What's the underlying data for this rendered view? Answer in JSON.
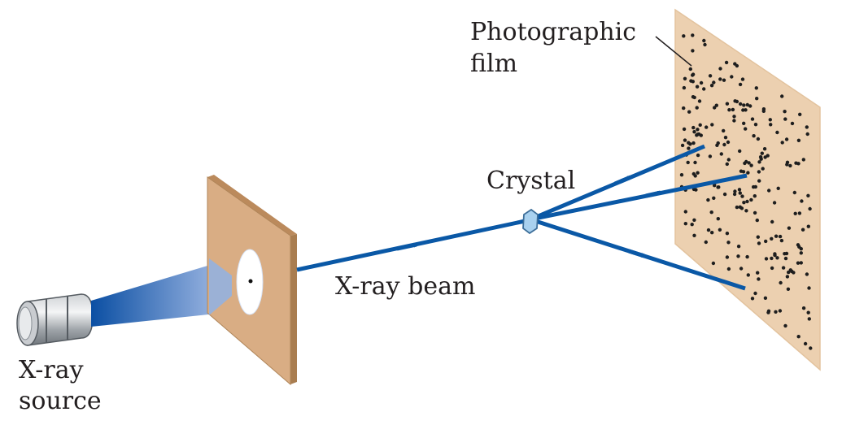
{
  "labels": {
    "source_line1": "X-ray",
    "source_line2": "source",
    "beam": "X-ray beam",
    "crystal": "Crystal",
    "film_line1": "Photographic",
    "film_line2": "film"
  },
  "colors": {
    "beam": "#0a58a6",
    "screen": "#d9ad84",
    "screen_edge": "#a97d50",
    "film": "#ecd0b0",
    "crystal": "#a9d1ef",
    "spot": "#1e1e1e",
    "text": "#231f20"
  }
}
